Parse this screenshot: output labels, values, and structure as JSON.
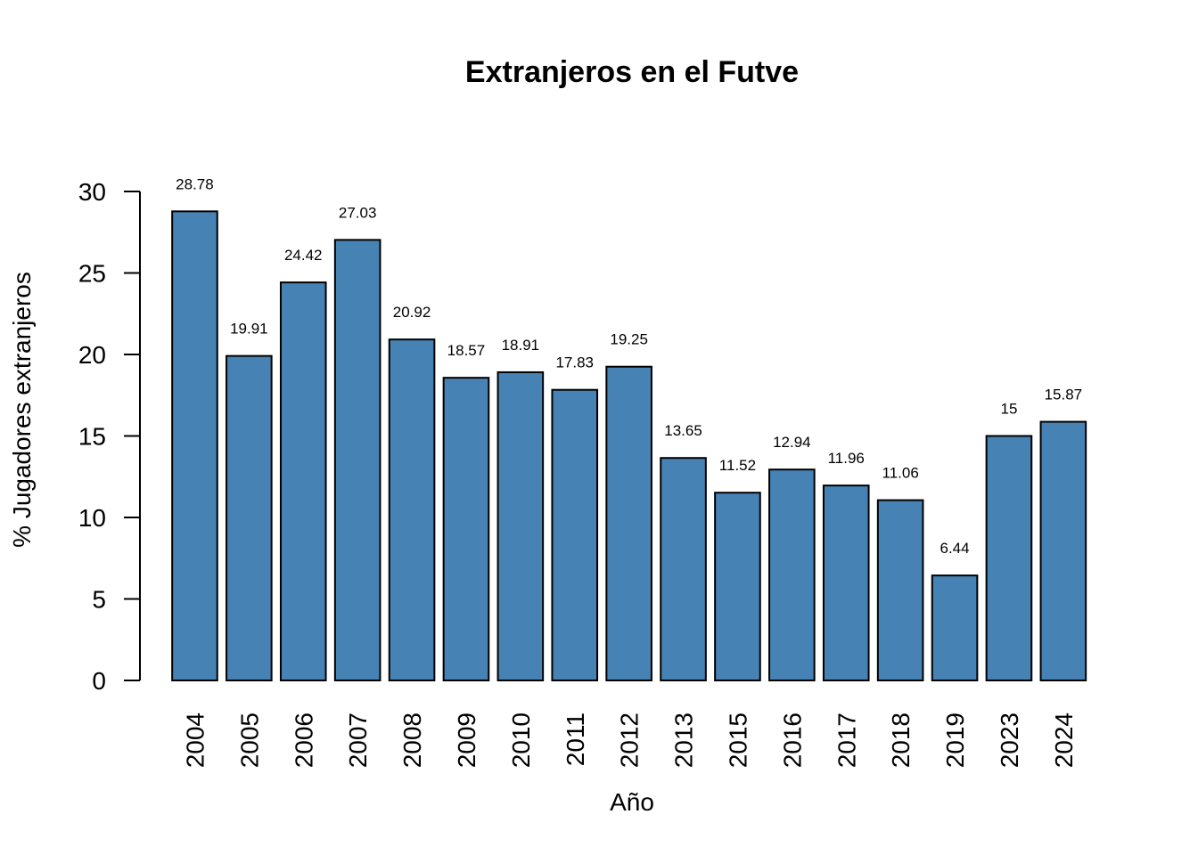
{
  "chart_data": {
    "type": "bar",
    "title": "Extranjeros en el Futve",
    "xlabel": "Año",
    "ylabel": "% Jugadores extranjeros",
    "categories": [
      "2004",
      "2005",
      "2006",
      "2007",
      "2008",
      "2009",
      "2010",
      "2011",
      "2012",
      "2013",
      "2015",
      "2016",
      "2017",
      "2018",
      "2019",
      "2023",
      "2024"
    ],
    "values": [
      28.78,
      19.91,
      24.42,
      27.03,
      20.92,
      18.57,
      18.91,
      17.83,
      19.25,
      13.65,
      11.52,
      12.94,
      11.96,
      11.06,
      6.44,
      15,
      15.87
    ],
    "data_labels": [
      "28.78",
      "19.91",
      "24.42",
      "27.03",
      "20.92",
      "18.57",
      "18.91",
      "17.83",
      "19.25",
      "13.65",
      "11.52",
      "12.94",
      "11.96",
      "11.06",
      "6.44",
      "15",
      "15.87"
    ],
    "yticks": [
      0,
      5,
      10,
      15,
      20,
      25,
      30
    ],
    "ylim": [
      0,
      30
    ],
    "grid": false,
    "legend": "none",
    "bar_color": "#4682B4",
    "edge_color": "#000000"
  }
}
